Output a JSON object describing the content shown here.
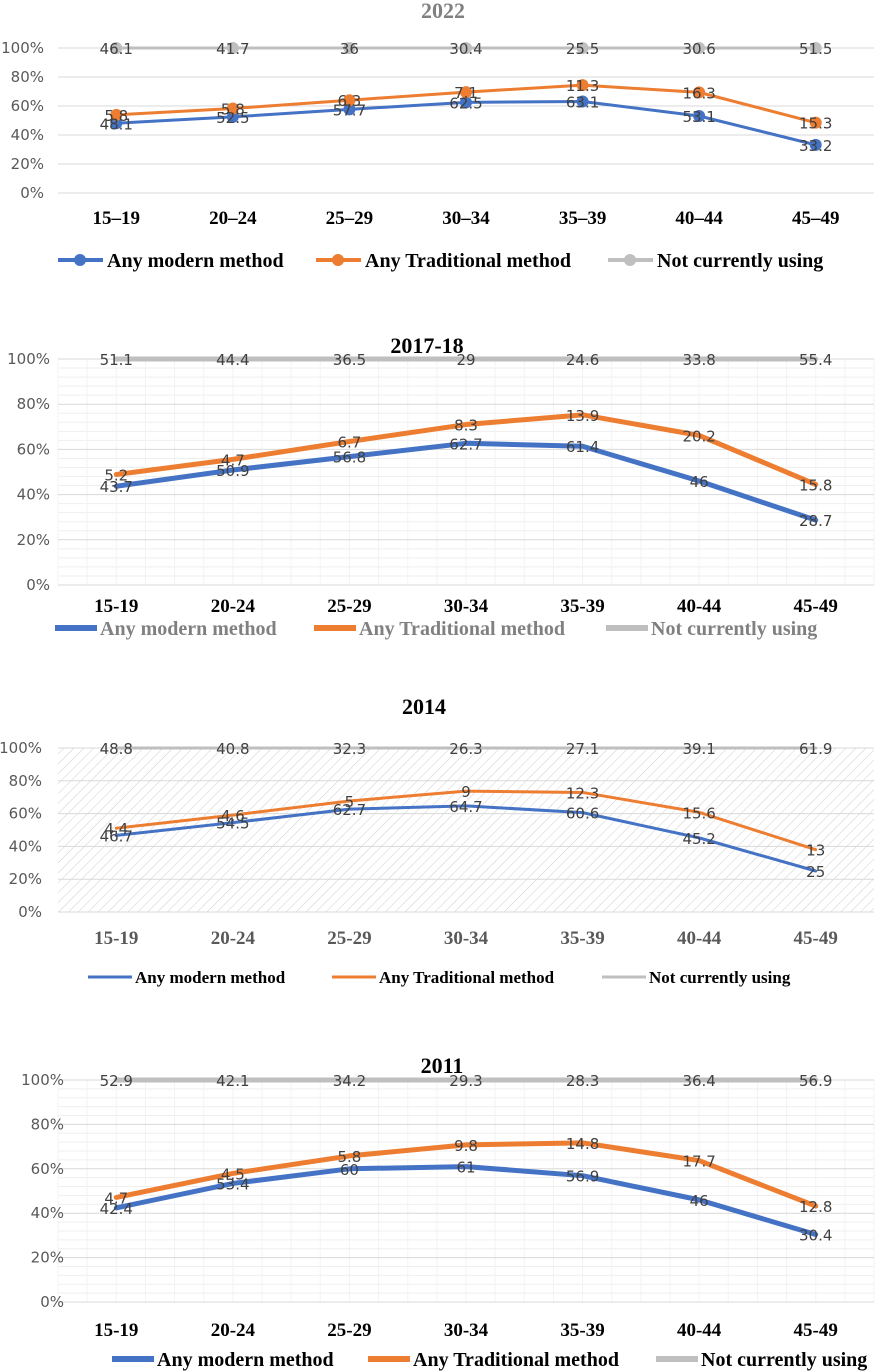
{
  "colors": {
    "modern": "#4472C4",
    "traditional": "#ED7D31",
    "not_using": "#BFBFBF",
    "grid": "#D9D9D9",
    "hatch": "#C8C8C8"
  },
  "chart_data": [
    {
      "type": "line",
      "title": "2022",
      "categories": [
        "15–19",
        "20–24",
        "25–29",
        "30–34",
        "35–39",
        "40–44",
        "45–49"
      ],
      "y_ticks": [
        "0%",
        "20%",
        "40%",
        "60%",
        "80%",
        "100%"
      ],
      "ylim": [
        0,
        100
      ],
      "legend": [
        "Any modern method",
        "Any Traditional method",
        "Not currently using"
      ],
      "series": [
        {
          "name": "Any modern method",
          "values": [
            48.1,
            52.5,
            57.7,
            62.5,
            63.1,
            53.1,
            33.2
          ],
          "labels": [
            "48.1",
            "52.5",
            "57.7",
            "62.5",
            "63.1",
            "53.1",
            "33.2"
          ]
        },
        {
          "name": "Any Traditional method",
          "values": [
            53.9,
            58.3,
            64.0,
            69.6,
            74.4,
            69.4,
            48.5
          ],
          "labels": [
            "5.8",
            "5.8",
            "6.3",
            "7.1",
            "11.3",
            "16.3",
            "15.3"
          ]
        },
        {
          "name": "Not currently using",
          "values": [
            100,
            100,
            100,
            100,
            100,
            100,
            100
          ],
          "labels": [
            "46.1",
            "41.7",
            "36",
            "30.4",
            "25.5",
            "30.6",
            "51.5"
          ]
        }
      ]
    },
    {
      "type": "line",
      "title": "2017-18",
      "categories": [
        "15-19",
        "20-24",
        "25-29",
        "30-34",
        "35-39",
        "40-44",
        "45-49"
      ],
      "y_ticks": [
        "0%",
        "20%",
        "40%",
        "60%",
        "80%",
        "100%"
      ],
      "ylim": [
        0,
        100
      ],
      "legend": [
        "Any modern method",
        "Any Traditional method",
        "Not currently using"
      ],
      "series": [
        {
          "name": "Any modern method",
          "values": [
            43.7,
            50.9,
            56.8,
            62.7,
            61.4,
            46.0,
            28.7
          ],
          "labels": [
            "43.7",
            "50.9",
            "56.8",
            "62.7",
            "61.4",
            "46",
            "28.7"
          ]
        },
        {
          "name": "Any Traditional method",
          "values": [
            48.9,
            55.6,
            63.5,
            71.0,
            75.3,
            66.2,
            44.5
          ],
          "labels": [
            "5.2",
            "4.7",
            "6.7",
            "8.3",
            "13.9",
            "20.2",
            "15.8"
          ]
        },
        {
          "name": "Not currently using",
          "values": [
            100,
            100,
            100,
            100,
            100,
            100,
            100
          ],
          "labels": [
            "51.1",
            "44.4",
            "36.5",
            "29",
            "24.6",
            "33.8",
            "55.4"
          ]
        }
      ]
    },
    {
      "type": "line",
      "title": "2014",
      "categories": [
        "15-19",
        "20-24",
        "25-29",
        "30-34",
        "35-39",
        "40-44",
        "45-49"
      ],
      "y_ticks": [
        "0%",
        "20%",
        "40%",
        "60%",
        "80%",
        "100%"
      ],
      "ylim": [
        0,
        100
      ],
      "legend": [
        "Any modern method",
        "Any Traditional method",
        "Not currently using"
      ],
      "series": [
        {
          "name": "Any modern method",
          "values": [
            46.7,
            54.5,
            62.7,
            64.7,
            60.6,
            45.2,
            25.0
          ],
          "labels": [
            "46.7",
            "54.5",
            "62.7",
            "64.7",
            "60.6",
            "45.2",
            "25"
          ]
        },
        {
          "name": "Any Traditional method",
          "values": [
            51.1,
            59.1,
            67.7,
            73.7,
            72.9,
            60.8,
            38.0
          ],
          "labels": [
            "4.4",
            "4.6",
            "5",
            "9",
            "12.3",
            "15.6",
            "13"
          ]
        },
        {
          "name": "Not currently using",
          "values": [
            100,
            100,
            100,
            100,
            100,
            100,
            100
          ],
          "labels": [
            "48.8",
            "40.8",
            "32.3",
            "26.3",
            "27.1",
            "39.1",
            "61.9"
          ]
        }
      ]
    },
    {
      "type": "line",
      "title": "2011",
      "categories": [
        "15-19",
        "20-24",
        "25-29",
        "30-34",
        "35-39",
        "40-44",
        "45-49"
      ],
      "y_ticks": [
        "0%",
        "20%",
        "40%",
        "60%",
        "80%",
        "100%"
      ],
      "ylim": [
        0,
        100
      ],
      "legend": [
        "Any modern method",
        "Any Traditional method",
        "Not currently using"
      ],
      "series": [
        {
          "name": "Any modern method",
          "values": [
            42.4,
            53.4,
            60.0,
            61.0,
            56.9,
            46.0,
            30.4
          ],
          "labels": [
            "42.4",
            "53.4",
            "60",
            "61",
            "56.9",
            "46",
            "30.4"
          ]
        },
        {
          "name": "Any Traditional method",
          "values": [
            47.1,
            57.9,
            65.8,
            70.8,
            71.7,
            63.7,
            43.2
          ],
          "labels": [
            "4.7",
            "4.5",
            "5.8",
            "9.8",
            "14.8",
            "17.7",
            "12.8"
          ]
        },
        {
          "name": "Not currently using",
          "values": [
            100,
            100,
            100,
            100,
            100,
            100,
            100
          ],
          "labels": [
            "52.9",
            "42.1",
            "34.2",
            "29.3",
            "28.3",
            "36.4",
            "56.9"
          ]
        }
      ]
    }
  ]
}
